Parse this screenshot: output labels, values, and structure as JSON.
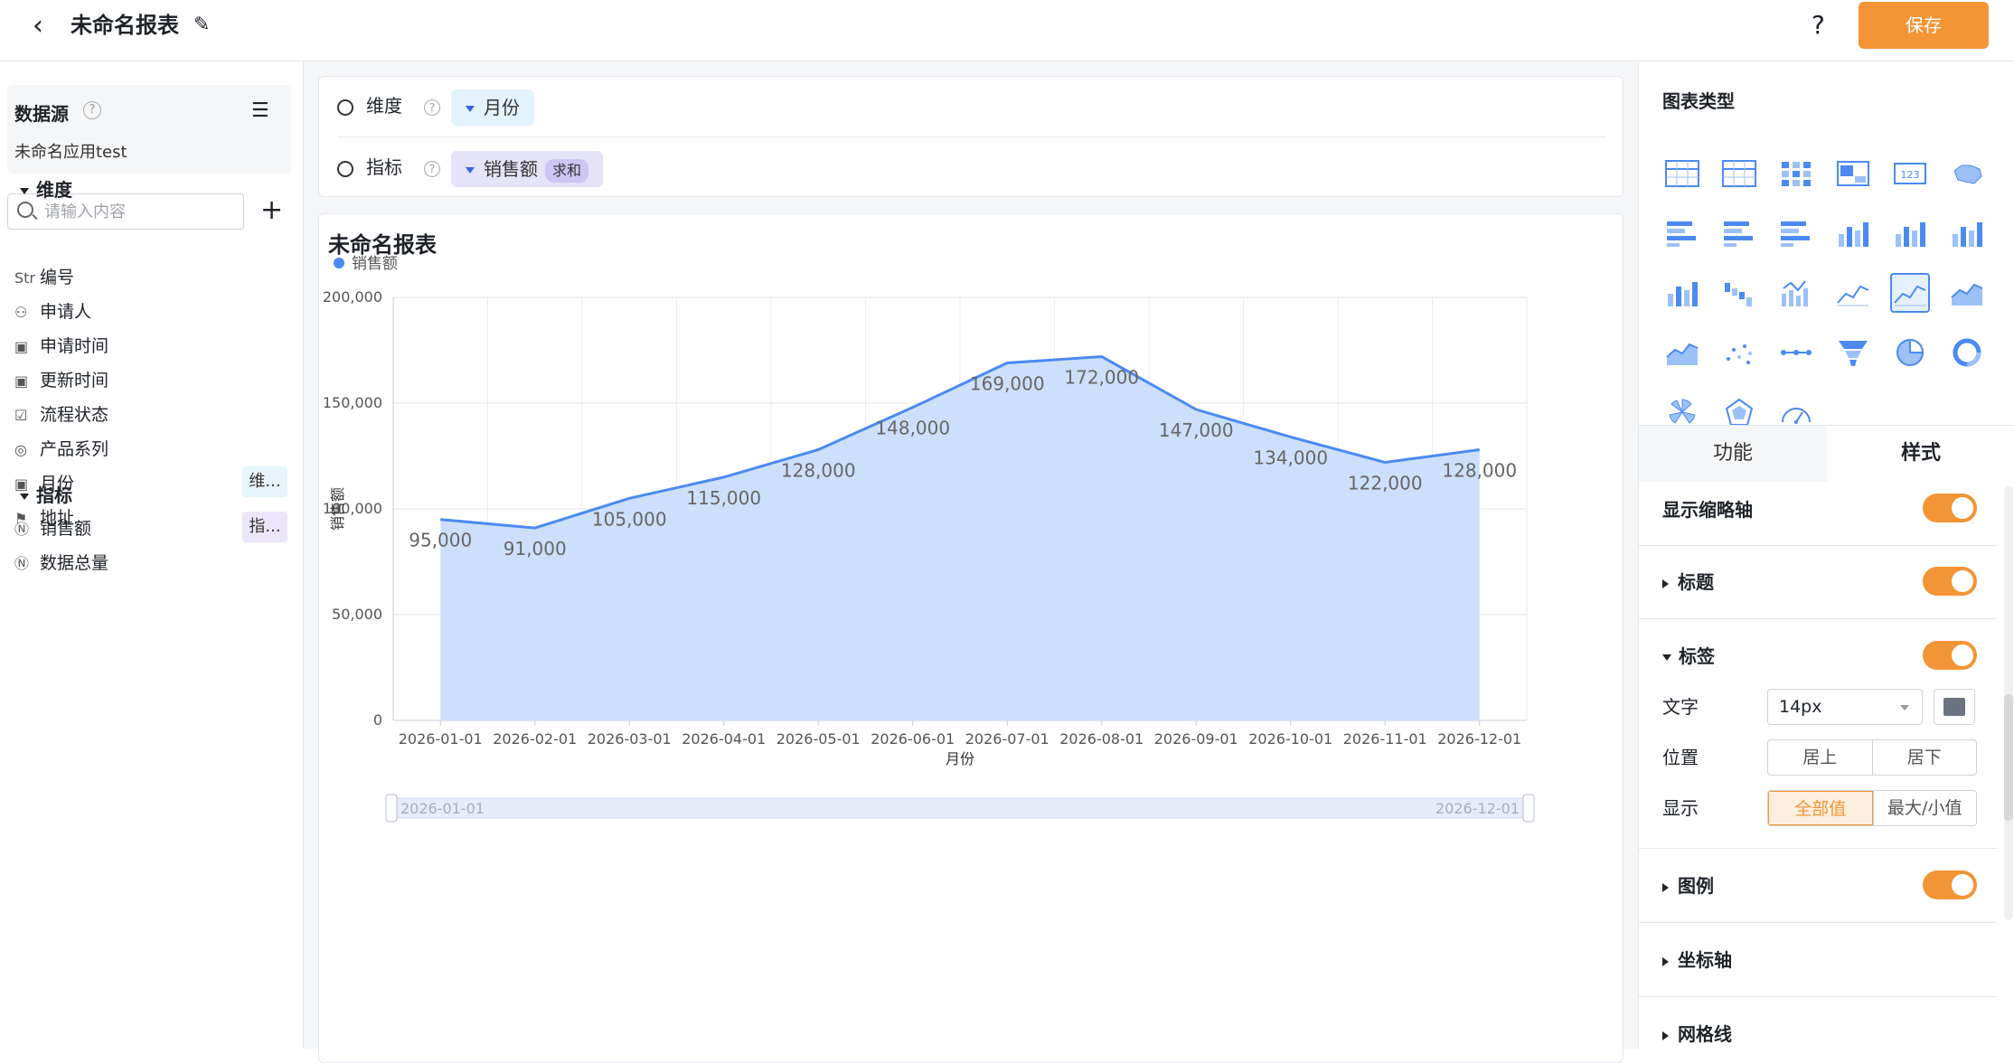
{
  "header": {
    "title": "未命名报表",
    "help": "?",
    "save_label": "保存"
  },
  "datasource": {
    "title": "数据源",
    "app": "未命名应用test"
  },
  "search": {
    "placeholder": "请输入内容"
  },
  "fields": {
    "dim_group": "维度",
    "dims": [
      {
        "icon": "Str",
        "label": "编号"
      },
      {
        "icon": "user-icon",
        "label": "申请人"
      },
      {
        "icon": "calendar-icon",
        "label": "申请时间"
      },
      {
        "icon": "calendar-icon",
        "label": "更新时间"
      },
      {
        "icon": "checkbox-icon",
        "label": "流程状态"
      },
      {
        "icon": "radio-icon",
        "label": "产品系列"
      },
      {
        "icon": "calendar-icon",
        "label": "月份",
        "tag": "维..."
      },
      {
        "icon": "location-icon",
        "label": "地址"
      }
    ],
    "ind_group": "指标",
    "inds": [
      {
        "icon": "number-icon",
        "label": "销售额",
        "tag": "指..."
      },
      {
        "icon": "number-icon",
        "label": "数据总量"
      }
    ]
  },
  "config": {
    "dim_label": "维度",
    "dim_chip": "月份",
    "ind_label": "指标",
    "ind_chip": "销售额",
    "ind_agg": "求和"
  },
  "chart_title": "未命名报表",
  "chart_data": {
    "type": "area",
    "categories": [
      "2026-01-01",
      "2026-02-01",
      "2026-03-01",
      "2026-04-01",
      "2026-05-01",
      "2026-06-01",
      "2026-07-01",
      "2026-08-01",
      "2026-09-01",
      "2026-10-01",
      "2026-11-01",
      "2026-12-01"
    ],
    "series": [
      {
        "name": "销售额",
        "values": [
          95000,
          91000,
          105000,
          115000,
          128000,
          148000,
          169000,
          172000,
          147000,
          134000,
          122000,
          128000
        ]
      }
    ],
    "value_labels": [
      "95,000",
      "91,000",
      "105,000",
      "115,000",
      "128,000",
      "148,000",
      "169,000",
      "172,000",
      "147,000",
      "134,000",
      "122,000",
      "128,000"
    ],
    "xlabel": "月份",
    "ylabel": "销售额",
    "ylim": [
      0,
      200000
    ],
    "yticks": [
      0,
      50000,
      100000,
      150000,
      200000
    ],
    "ytick_labels": [
      "0",
      "50,000",
      "100,000",
      "150,000",
      "200,000"
    ],
    "legend": "top-left",
    "grid": true,
    "color": "#4b8af1",
    "fill": "#cce0fb",
    "zoom": {
      "start": "2026-01-01",
      "end": "2026-12-01"
    }
  },
  "right": {
    "chart_type_title": "图表类型",
    "tabs": [
      "功能",
      "样式"
    ],
    "options": {
      "thumbnail": "显示缩略轴",
      "title": "标题",
      "label": "标签",
      "text": "文字",
      "font_size": "14px",
      "position": "位置",
      "pos_opts": [
        "居上",
        "居下"
      ],
      "display": "显示",
      "disp_opts": [
        "全部值",
        "最大/小值"
      ],
      "legend": "图例",
      "axis": "坐标轴",
      "grid": "网格线"
    }
  },
  "colors": {
    "accent": "#f39536",
    "primary": "#4b8af1"
  }
}
